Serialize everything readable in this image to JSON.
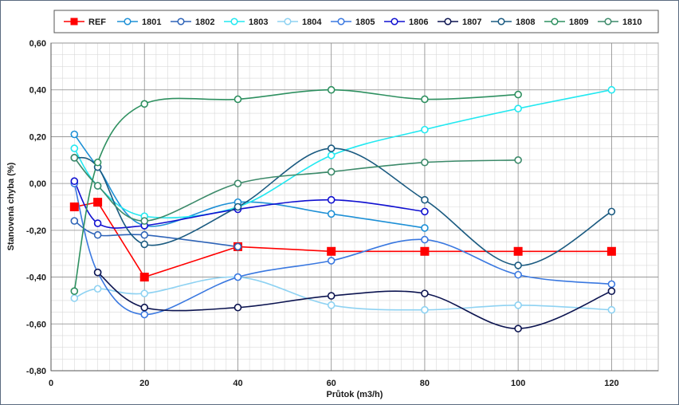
{
  "chart_data": {
    "type": "line",
    "title": "",
    "xlabel": "Průtok (m3/h)",
    "ylabel": "Stanovená chyba (%)",
    "xlim": [
      0,
      130
    ],
    "ylim": [
      -0.8,
      0.6
    ],
    "x_ticks": [
      0,
      20,
      40,
      60,
      80,
      100,
      120
    ],
    "x_tick_labels": [
      "0",
      "20",
      "40",
      "60",
      "80",
      "100",
      "120"
    ],
    "y_ticks": [
      0.6,
      0.4,
      0.2,
      0.0,
      -0.2,
      -0.4,
      -0.6,
      -0.8
    ],
    "y_tick_labels": [
      "0,60",
      "0,40",
      "0,20",
      "0,00",
      "-0,20",
      "-0,40",
      "-0,60",
      "-0,80"
    ],
    "grid": true,
    "legend_position": "top",
    "series": [
      {
        "name": "REF",
        "color": "#ff0000",
        "marker": "square",
        "smooth": false,
        "points": [
          [
            5,
            -0.1
          ],
          [
            10,
            -0.08
          ],
          [
            20,
            -0.4
          ],
          [
            40,
            -0.27
          ],
          [
            60,
            -0.29
          ],
          [
            80,
            -0.29
          ],
          [
            100,
            -0.29
          ],
          [
            120,
            -0.29
          ]
        ]
      },
      {
        "name": "1801",
        "color": "#1e90d6",
        "marker": "circle",
        "smooth": true,
        "points": [
          [
            5,
            0.21
          ],
          [
            10,
            0.07
          ],
          [
            20,
            -0.18
          ],
          [
            40,
            -0.08
          ],
          [
            60,
            -0.13
          ],
          [
            80,
            -0.19
          ]
        ]
      },
      {
        "name": "1802",
        "color": "#2e64b8",
        "marker": "circle",
        "smooth": true,
        "points": [
          [
            5,
            -0.16
          ],
          [
            10,
            -0.22
          ],
          [
            20,
            -0.22
          ],
          [
            40,
            -0.27
          ]
        ]
      },
      {
        "name": "1803",
        "color": "#22e8f0",
        "marker": "circle",
        "smooth": true,
        "points": [
          [
            5,
            0.15
          ],
          [
            10,
            -0.01
          ],
          [
            20,
            -0.14
          ],
          [
            40,
            -0.1
          ],
          [
            60,
            0.12
          ],
          [
            80,
            0.23
          ],
          [
            100,
            0.32
          ],
          [
            120,
            0.4
          ]
        ]
      },
      {
        "name": "1804",
        "color": "#8ed2f2",
        "marker": "circle",
        "smooth": true,
        "points": [
          [
            5,
            -0.49
          ],
          [
            10,
            -0.45
          ],
          [
            20,
            -0.47
          ],
          [
            40,
            -0.4
          ],
          [
            60,
            -0.52
          ],
          [
            80,
            -0.54
          ],
          [
            100,
            -0.52
          ],
          [
            120,
            -0.54
          ]
        ]
      },
      {
        "name": "1805",
        "color": "#3a78e0",
        "marker": "circle",
        "smooth": true,
        "points": [
          [
            5,
            0.0
          ],
          [
            10,
            -0.38
          ],
          [
            20,
            -0.56
          ],
          [
            40,
            -0.4
          ],
          [
            60,
            -0.33
          ],
          [
            80,
            -0.24
          ],
          [
            100,
            -0.39
          ],
          [
            120,
            -0.43
          ]
        ]
      },
      {
        "name": "1806",
        "color": "#1010d0",
        "marker": "circle",
        "smooth": true,
        "points": [
          [
            5,
            0.01
          ],
          [
            10,
            -0.17
          ],
          [
            20,
            -0.18
          ],
          [
            40,
            -0.11
          ],
          [
            60,
            -0.07
          ],
          [
            80,
            -0.12
          ]
        ]
      },
      {
        "name": "1807",
        "color": "#0c1450",
        "marker": "circle",
        "smooth": true,
        "points": [
          [
            10,
            -0.38
          ],
          [
            20,
            -0.53
          ],
          [
            40,
            -0.53
          ],
          [
            60,
            -0.48
          ],
          [
            80,
            -0.47
          ],
          [
            100,
            -0.62
          ],
          [
            120,
            -0.46
          ]
        ]
      },
      {
        "name": "1808",
        "color": "#1a5a80",
        "marker": "circle",
        "smooth": true,
        "points": [
          [
            5,
            0.11
          ],
          [
            10,
            0.07
          ],
          [
            20,
            -0.26
          ],
          [
            40,
            -0.1
          ],
          [
            60,
            0.15
          ],
          [
            80,
            -0.07
          ],
          [
            100,
            -0.35
          ],
          [
            120,
            -0.12
          ]
        ]
      },
      {
        "name": "1809",
        "color": "#2e9060",
        "marker": "circle",
        "smooth": true,
        "points": [
          [
            5,
            -0.46
          ],
          [
            10,
            0.09
          ],
          [
            20,
            0.34
          ],
          [
            40,
            0.36
          ],
          [
            60,
            0.4
          ],
          [
            80,
            0.36
          ],
          [
            100,
            0.38
          ]
        ]
      },
      {
        "name": "1810",
        "color": "#3c8a6a",
        "marker": "circle",
        "smooth": true,
        "points": [
          [
            5,
            0.11
          ],
          [
            10,
            -0.01
          ],
          [
            20,
            -0.16
          ],
          [
            40,
            0.0
          ],
          [
            60,
            0.05
          ],
          [
            80,
            0.09
          ],
          [
            100,
            0.1
          ]
        ]
      }
    ]
  }
}
